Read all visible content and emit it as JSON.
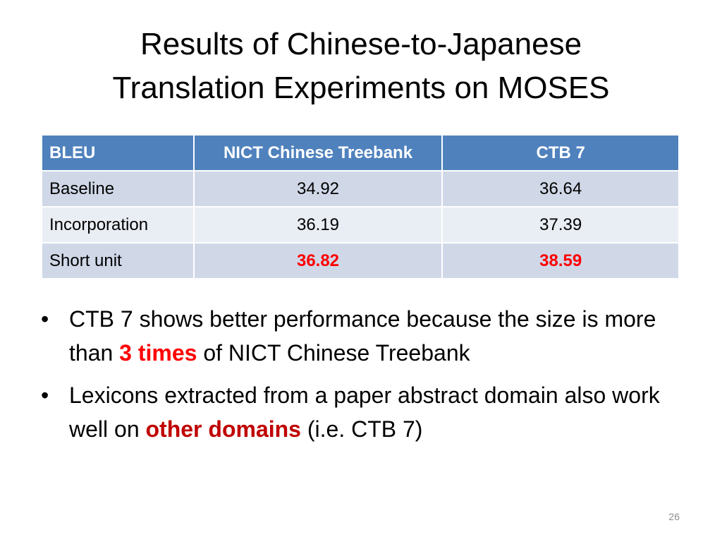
{
  "title": {
    "line1": "Results of Chinese-to-Japanese",
    "line2": "Translation Experiments on MOSES"
  },
  "table": {
    "headers": [
      "BLEU",
      "NICT Chinese Treebank",
      "CTB 7"
    ],
    "rows": [
      {
        "label": "Baseline",
        "nict": "34.92",
        "ctb7": "36.64"
      },
      {
        "label": "Incorporation",
        "nict": "36.19",
        "ctb7": "37.39"
      },
      {
        "label": "Short unit",
        "nict": "36.82",
        "ctb7": "38.59"
      }
    ],
    "header_color": "#4f81bd",
    "row_colors": [
      "#d0d8e8",
      "#e9edf4"
    ],
    "highlight_color": "#ff0000"
  },
  "bullets": [
    {
      "marker": "•",
      "text_before": "CTB 7 shows better performance because the size is more than ",
      "highlight": "3 times",
      "text_after": " of NICT Chinese Treebank"
    },
    {
      "marker": "•",
      "text_before": "Lexicons extracted from a paper abstract domain also work well on ",
      "highlight": "other domains",
      "text_after": " (i.e. CTB 7)"
    }
  ],
  "page_number": "26"
}
